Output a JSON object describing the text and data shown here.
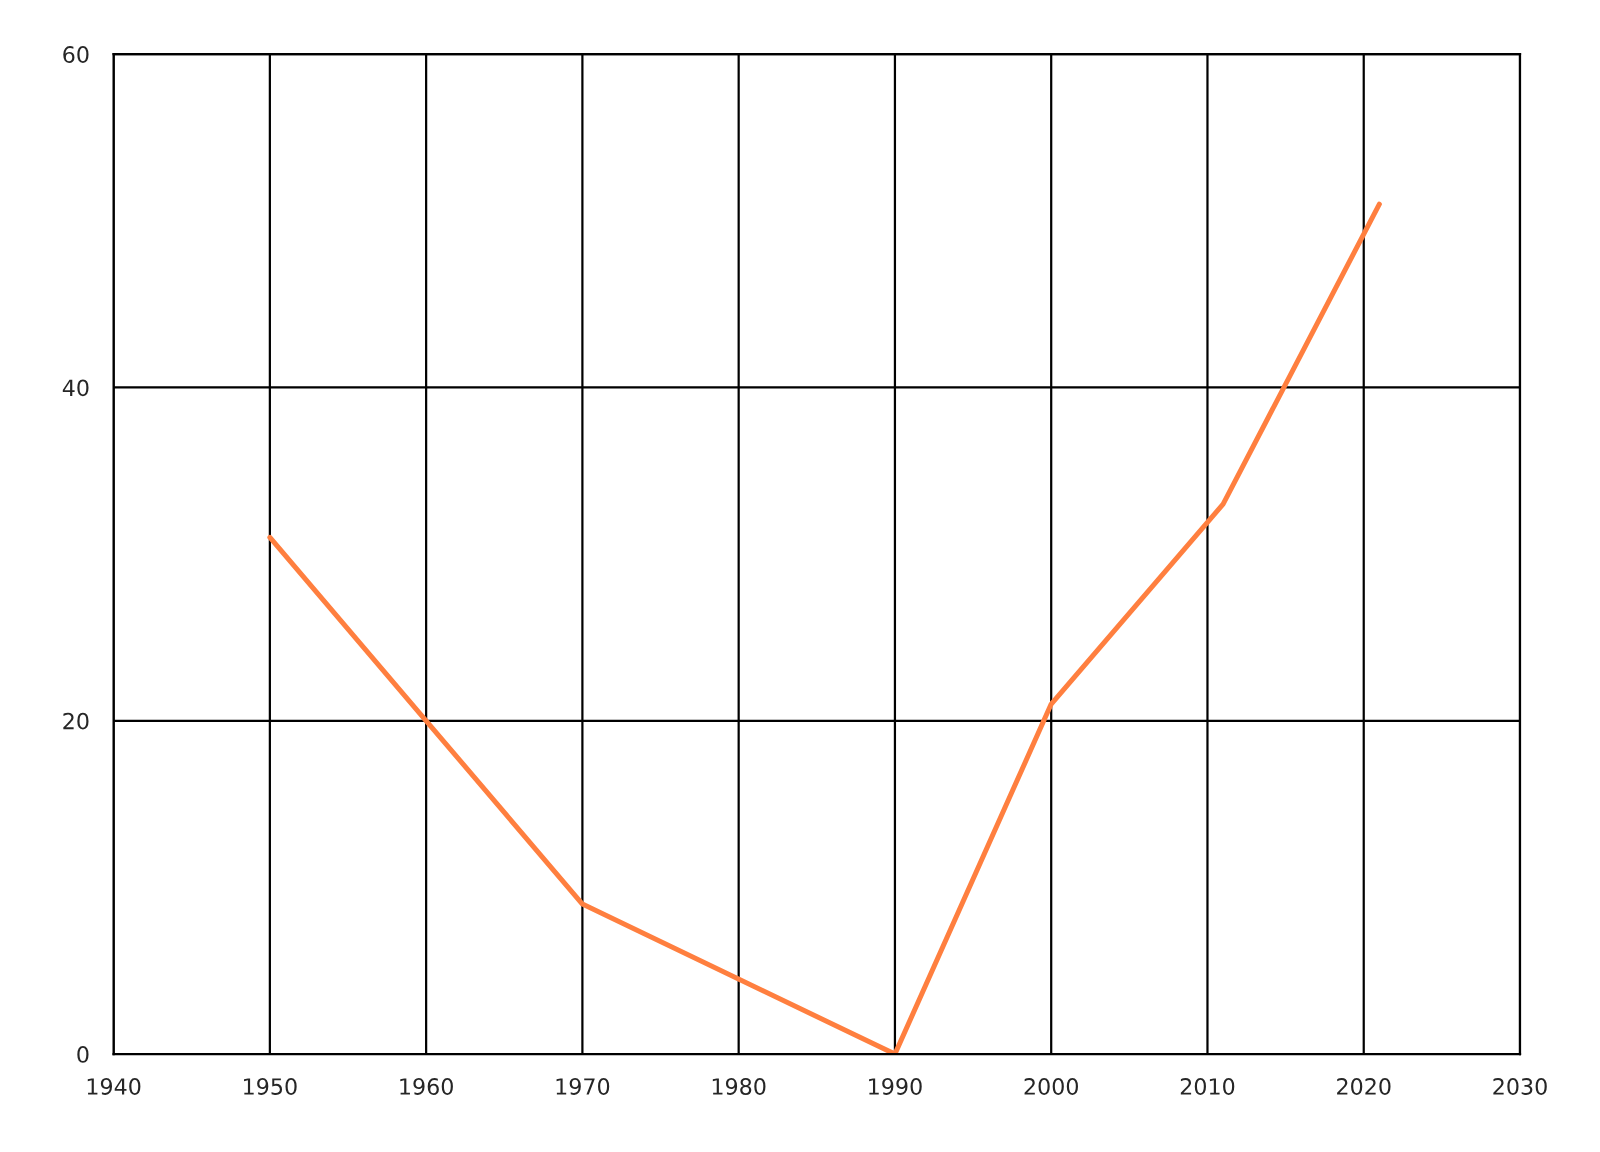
{
  "chart_data": {
    "type": "line",
    "x": [
      1950,
      1960,
      1970,
      1990,
      2000,
      2011,
      2021
    ],
    "series": [
      {
        "color": "#ff7f3f",
        "values": [
          31,
          20,
          9,
          0,
          21,
          33,
          51
        ]
      }
    ],
    "xlim": [
      1940,
      2030
    ],
    "xticks": [
      1940,
      1950,
      1960,
      1970,
      1980,
      1990,
      2000,
      2010,
      2020,
      2030
    ],
    "ylim": [
      0,
      60
    ],
    "yticks": [
      0,
      20,
      40,
      60
    ],
    "grid": true,
    "marker": "none",
    "line_style": "solid"
  }
}
